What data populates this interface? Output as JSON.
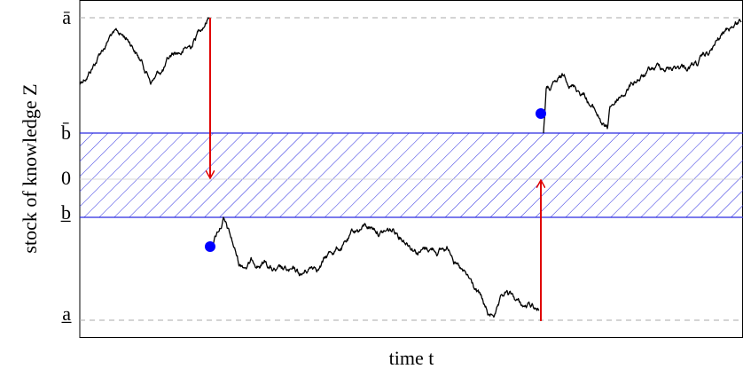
{
  "y_axis_label": "stock of knowledge Z",
  "x_axis_label": "time t",
  "levels": [
    "ā",
    "b̄",
    "0",
    "b̲",
    "a̲"
  ]
}
